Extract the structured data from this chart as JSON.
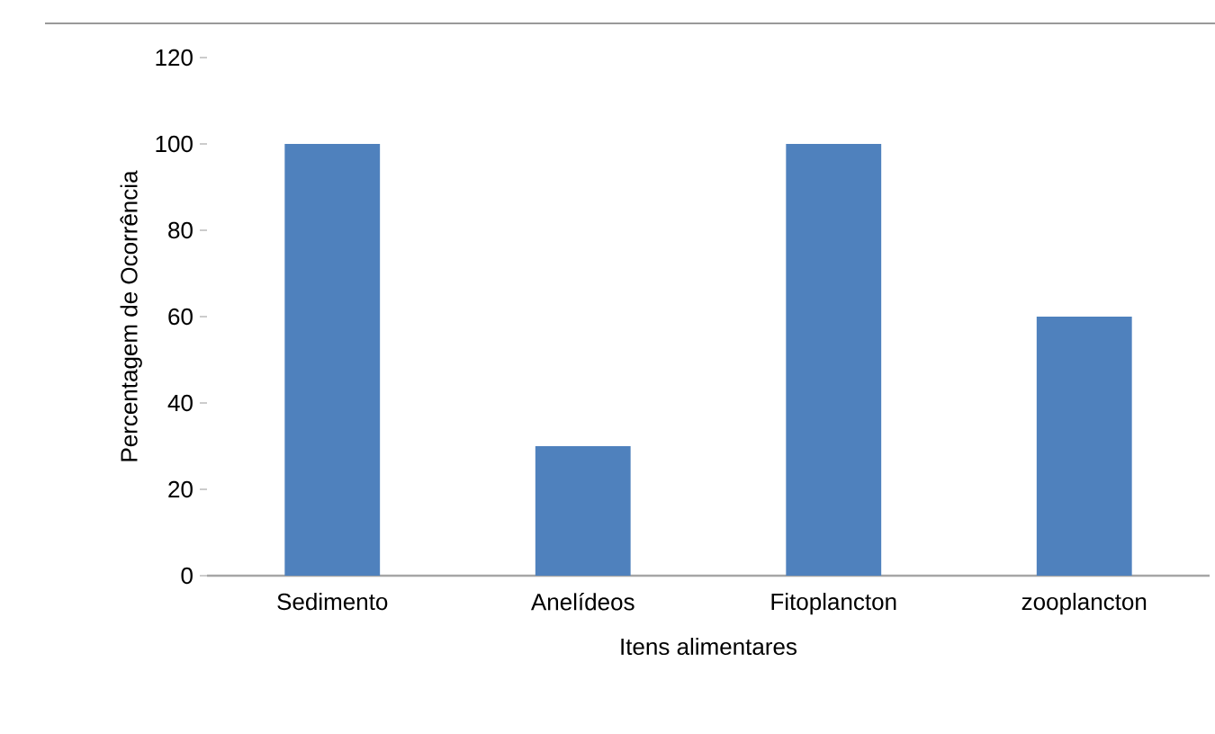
{
  "chart_data": {
    "type": "bar",
    "categories": [
      "Sedimento",
      "Anelídeos",
      "Fitoplancton",
      "zooplancton"
    ],
    "values": [
      100,
      30,
      100,
      60
    ],
    "color": "#4f81bd",
    "xlabel": "Itens alimentares",
    "ylabel": "Percentagem de Ocorrência",
    "ylim": [
      0,
      120
    ],
    "yticks": [
      0,
      20,
      40,
      60,
      80,
      100,
      120
    ],
    "grid": false
  }
}
